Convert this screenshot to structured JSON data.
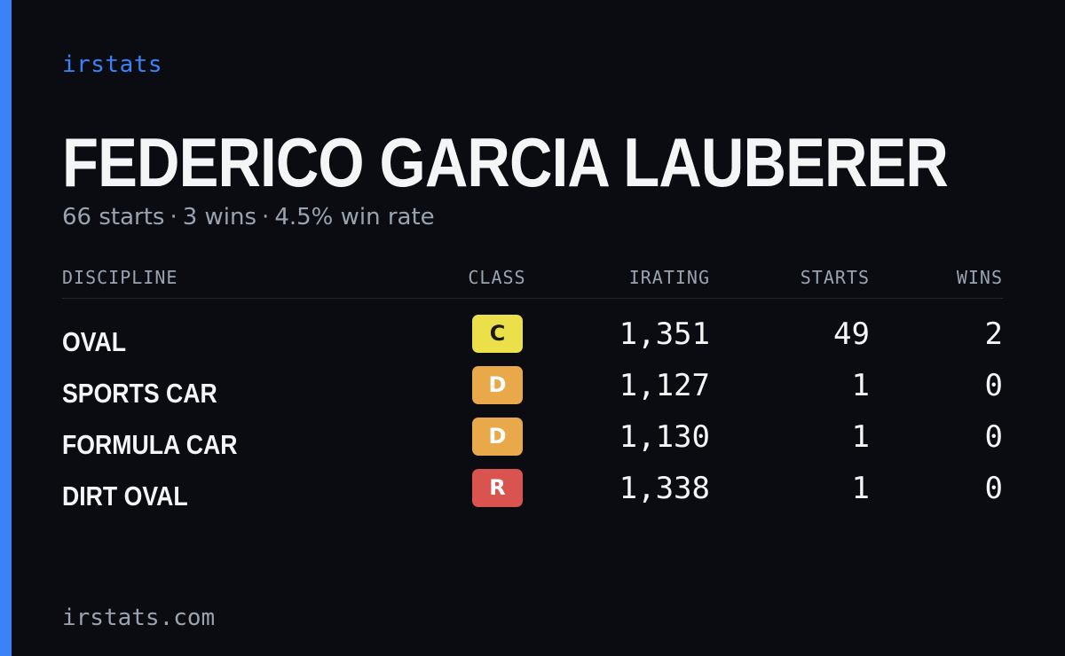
{
  "brand": "irstats",
  "driver": {
    "name": "FEDERICO GARCIA LAUBERER",
    "summary": {
      "starts": "66 starts",
      "wins": "3 wins",
      "win_rate": "4.5% win rate",
      "separator": "·"
    }
  },
  "table": {
    "columns": {
      "discipline": "DISCIPLINE",
      "class": "CLASS",
      "irating": "IRATING",
      "starts": "STARTS",
      "wins": "WINS"
    },
    "rows": [
      {
        "discipline": "OVAL",
        "class": "C",
        "class_bg": "#ebe04a",
        "class_fg": "#1a1a1a",
        "irating": "1,351",
        "starts": "49",
        "wins": "2"
      },
      {
        "discipline": "SPORTS CAR",
        "class": "D",
        "class_bg": "#e9a94a",
        "class_fg": "#ffffff",
        "irating": "1,127",
        "starts": "1",
        "wins": "0"
      },
      {
        "discipline": "FORMULA CAR",
        "class": "D",
        "class_bg": "#e9a94a",
        "class_fg": "#ffffff",
        "irating": "1,130",
        "starts": "1",
        "wins": "0"
      },
      {
        "discipline": "DIRT OVAL",
        "class": "R",
        "class_bg": "#d9534f",
        "class_fg": "#ffffff",
        "irating": "1,338",
        "starts": "1",
        "wins": "0"
      }
    ]
  },
  "footer": {
    "url": "irstats.com"
  },
  "colors": {
    "background": "#0a0c12",
    "accent": "#3b82f6",
    "text_primary": "#f4f5f7",
    "text_muted": "#9aa3b0"
  }
}
